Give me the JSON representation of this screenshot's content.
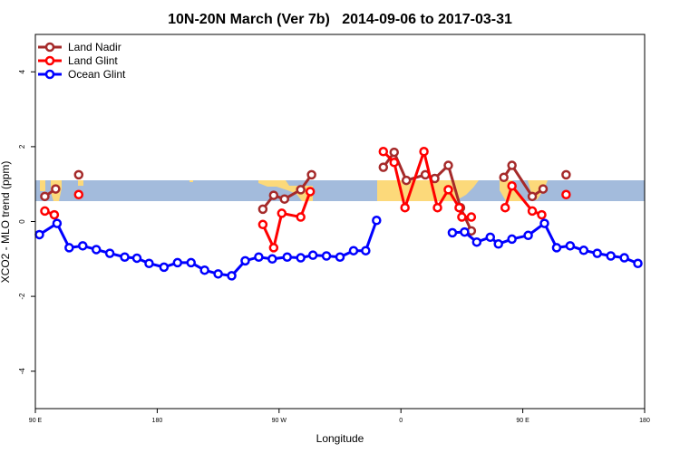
{
  "chart_data": {
    "type": "line",
    "title": "10N-20N March (Ver 7b)   2014-09-06 to 2017-03-31",
    "xlabel": "Longitude",
    "ylabel": "XCO2 - MLO trend (ppm)",
    "xlim": [
      90,
      540
    ],
    "xticks": [
      {
        "value": 90,
        "label": "90 E"
      },
      {
        "value": 180,
        "label": "180"
      },
      {
        "value": 270,
        "label": "90 W"
      },
      {
        "value": 360,
        "label": "0"
      },
      {
        "value": 450,
        "label": "90 E"
      },
      {
        "value": 540,
        "label": "180"
      }
    ],
    "ylim": [
      -5,
      5
    ],
    "yticks": [
      -4,
      -2,
      0,
      2,
      4
    ],
    "legend": "top-left",
    "series": [
      {
        "name": "Land Nadir",
        "color": "#a52a2a",
        "x": [
          97,
          105,
          110,
          122,
          200,
          258,
          266,
          274,
          286,
          294,
          320,
          347,
          355,
          364,
          378,
          385,
          395,
          404,
          412,
          425,
          436,
          442,
          457,
          465,
          475,
          482
        ],
        "values": [
          0.67,
          0.87,
          null,
          1.25,
          null,
          0.33,
          0.7,
          0.6,
          0.85,
          1.25,
          null,
          1.45,
          1.85,
          1.1,
          1.25,
          1.15,
          1.5,
          0.37,
          -0.25,
          null,
          1.18,
          1.5,
          0.67,
          0.87,
          null,
          1.25
        ]
      },
      {
        "name": "Land Glint",
        "color": "#ff0000",
        "x": [
          97,
          104,
          110,
          122,
          200,
          258,
          266,
          272,
          286,
          293,
          320,
          347,
          355,
          363,
          377,
          387,
          395,
          403,
          405,
          412,
          425,
          437,
          442,
          457,
          464,
          475,
          482
        ],
        "values": [
          0.28,
          0.18,
          null,
          0.72,
          null,
          -0.08,
          -0.7,
          0.22,
          0.12,
          0.8,
          null,
          1.87,
          1.58,
          0.37,
          1.87,
          0.37,
          0.85,
          0.37,
          0.12,
          0.12,
          null,
          0.37,
          0.95,
          0.28,
          0.18,
          null,
          0.72
        ]
      },
      {
        "name": "Ocean Glint",
        "color": "#0000ff",
        "x": [
          93,
          106,
          115,
          125,
          135,
          145,
          156,
          165,
          174,
          185,
          195,
          205,
          215,
          225,
          235,
          245,
          255,
          265,
          276,
          286,
          295,
          305,
          315,
          325,
          334,
          342,
          350,
          398,
          407,
          416,
          426,
          432,
          442,
          454,
          466,
          475,
          485,
          495,
          505,
          515,
          525,
          535
        ],
        "values": [
          -0.35,
          -0.05,
          -0.7,
          -0.65,
          -0.75,
          -0.85,
          -0.95,
          -0.98,
          -1.12,
          -1.22,
          -1.1,
          -1.1,
          -1.3,
          -1.4,
          -1.45,
          -1.05,
          -0.95,
          -1.0,
          -0.95,
          -0.97,
          -0.9,
          -0.92,
          -0.95,
          -0.78,
          -0.78,
          0.03,
          null,
          -0.3,
          -0.28,
          -0.55,
          -0.42,
          -0.6,
          -0.47,
          -0.37,
          -0.05,
          -0.7,
          -0.65,
          -0.77,
          -0.85,
          -0.92,
          -0.97,
          -1.12
        ]
      }
    ]
  }
}
